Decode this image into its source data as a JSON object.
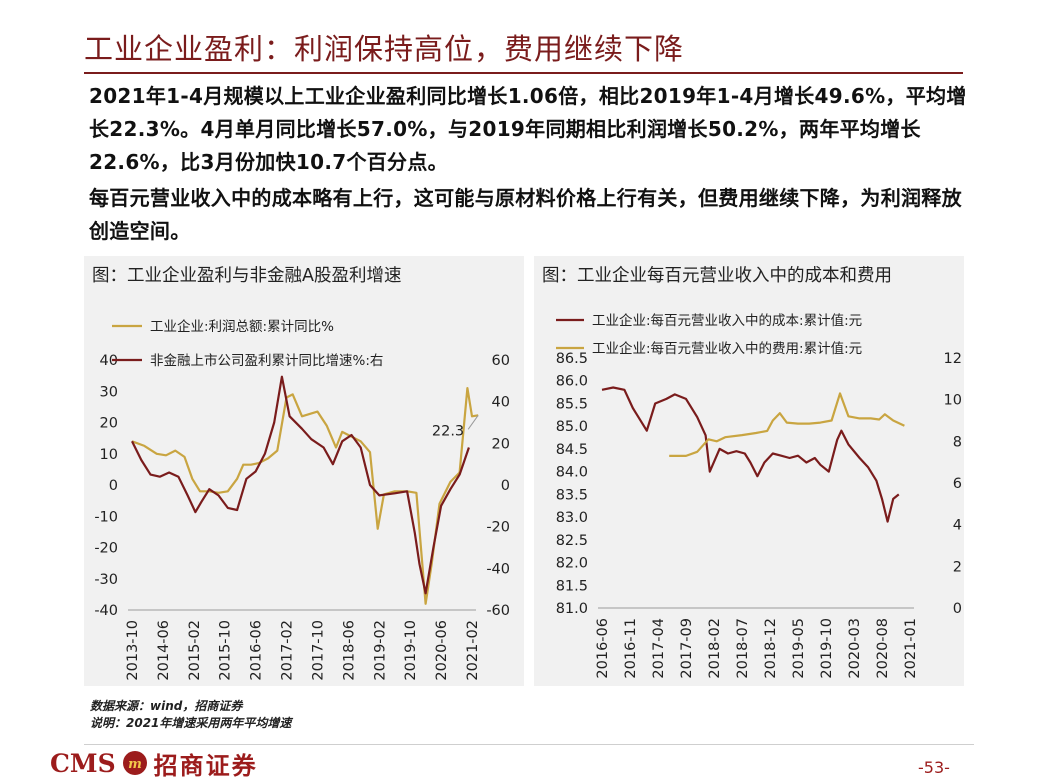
{
  "header": {
    "title": "工业企业盈利：利润保持高位，费用继续下降"
  },
  "body": {
    "paragraph_1": "2021年1-4月规模以上工业企业盈利同比增长1.06倍，相比2019年1-4月增长49.6%，平均增长22.3%。4月单月同比增长57.0%，与2019年同期相比利润增长50.2%，两年平均增长22.6%，比3月份加快10.7个百分点。",
    "paragraph_2": "每百元营业收入中的成本略有上行，这可能与原材料价格上行有关，但费用继续下降，为利润释放创造空间。"
  },
  "footer": {
    "source": "数据来源：wind，招商证券",
    "note": "说明：2021年增速采用两年平均增速",
    "logo_latin": "CMS",
    "logo_cn": "招商证券",
    "page_number": "-53-"
  },
  "colors": {
    "dark_red": "#7a1c1c",
    "gold": "#c9a541",
    "brand_red": "#9c1c1c",
    "panel_bg": "#f1f1f1"
  },
  "chart_data": [
    {
      "type": "line",
      "title": "图：工业企业盈利与非金融A股盈利增速",
      "x_ticks": [
        "2013-10",
        "2014-06",
        "2015-02",
        "2015-10",
        "2016-06",
        "2017-02",
        "2017-10",
        "2018-06",
        "2019-02",
        "2019-10",
        "2020-06",
        "2021-02"
      ],
      "left_axis": {
        "ylim": [
          -40,
          40
        ],
        "ticks": [
          "40",
          "30",
          "20",
          "10",
          "0",
          "-10",
          "-20",
          "-30",
          "-40"
        ]
      },
      "right_axis": {
        "ylim": [
          -60,
          60
        ],
        "ticks": [
          "60",
          "40",
          "20",
          "0",
          "-20",
          "-40",
          "-60"
        ]
      },
      "annotation": "22.3",
      "legend_position": "top-left",
      "series": [
        {
          "name": "工业企业:利润总额:累计同比%",
          "axis": "left",
          "color": "#c9a541",
          "points": [
            [
              0,
              14
            ],
            [
              0.4,
              12.5
            ],
            [
              0.8,
              10
            ],
            [
              1.1,
              9.5
            ],
            [
              1.4,
              11
            ],
            [
              1.7,
              9
            ],
            [
              1.95,
              2
            ],
            [
              2.2,
              -2
            ],
            [
              2.5,
              -2
            ],
            [
              2.8,
              -2.5
            ],
            [
              3.1,
              -2
            ],
            [
              3.4,
              2
            ],
            [
              3.6,
              6.5
            ],
            [
              3.85,
              6.5
            ],
            [
              4.1,
              7
            ],
            [
              4.4,
              8.5
            ],
            [
              4.7,
              11
            ],
            [
              5.0,
              28
            ],
            [
              5.2,
              29
            ],
            [
              5.5,
              22
            ],
            [
              6.0,
              23.5
            ],
            [
              6.3,
              19
            ],
            [
              6.6,
              12
            ],
            [
              6.8,
              17
            ],
            [
              7.1,
              15.5
            ],
            [
              7.4,
              14
            ],
            [
              7.7,
              10.5
            ],
            [
              7.95,
              -14
            ],
            [
              8.15,
              -3
            ],
            [
              8.5,
              -2
            ],
            [
              8.9,
              -2
            ],
            [
              9.2,
              -2.5
            ],
            [
              9.5,
              -38
            ],
            [
              9.7,
              -25
            ],
            [
              9.95,
              -6
            ],
            [
              10.3,
              1
            ],
            [
              10.6,
              4
            ],
            [
              10.85,
              31
            ],
            [
              11.0,
              22
            ],
            [
              11.2,
              22.3
            ]
          ]
        },
        {
          "name": "非金融上市公司盈利累计同比增速%:右",
          "axis": "right",
          "color": "#7a1c1c",
          "points": [
            [
              0,
              21
            ],
            [
              0.3,
              12
            ],
            [
              0.6,
              5
            ],
            [
              0.9,
              4
            ],
            [
              1.2,
              6
            ],
            [
              1.5,
              4
            ],
            [
              1.8,
              -5
            ],
            [
              2.05,
              -13
            ],
            [
              2.25,
              -8
            ],
            [
              2.5,
              -2
            ],
            [
              2.8,
              -5
            ],
            [
              3.1,
              -11
            ],
            [
              3.4,
              -12
            ],
            [
              3.7,
              3
            ],
            [
              4.0,
              6.5
            ],
            [
              4.3,
              15
            ],
            [
              4.6,
              30
            ],
            [
              4.85,
              52
            ],
            [
              5.1,
              33
            ],
            [
              5.5,
              27
            ],
            [
              5.8,
              22
            ],
            [
              6.2,
              18
            ],
            [
              6.5,
              10
            ],
            [
              6.8,
              21
            ],
            [
              7.1,
              24
            ],
            [
              7.4,
              18
            ],
            [
              7.7,
              0
            ],
            [
              8.0,
              -5
            ],
            [
              8.5,
              -4
            ],
            [
              8.9,
              -3
            ],
            [
              9.15,
              -23
            ],
            [
              9.3,
              -38
            ],
            [
              9.5,
              -52
            ],
            [
              9.75,
              -30
            ],
            [
              10.0,
              -10
            ],
            [
              10.3,
              -2
            ],
            [
              10.6,
              5
            ],
            [
              10.9,
              18
            ]
          ]
        }
      ]
    },
    {
      "type": "line",
      "title": "图：工业企业每百元营业收入中的成本和费用",
      "x_ticks": [
        "2016-06",
        "2016-11",
        "2017-04",
        "2017-09",
        "2018-02",
        "2018-07",
        "2018-12",
        "2019-05",
        "2019-10",
        "2020-03",
        "2020-08",
        "2021-01"
      ],
      "left_axis": {
        "ylim": [
          81.0,
          86.5
        ],
        "ticks": [
          "86.5",
          "86.0",
          "85.5",
          "85.0",
          "84.5",
          "84.0",
          "83.5",
          "83.0",
          "82.5",
          "82.0",
          "81.5",
          "81.0"
        ]
      },
      "right_axis": {
        "ylim": [
          0,
          12
        ],
        "ticks": [
          "12",
          "10",
          "8",
          "6",
          "4",
          "2",
          "0"
        ]
      },
      "legend_position": "top",
      "series": [
        {
          "name": "工业企业:每百元营业收入中的成本:累计值:元",
          "axis": "left",
          "color": "#7a1c1c",
          "points": [
            [
              0,
              85.8
            ],
            [
              0.4,
              85.85
            ],
            [
              0.8,
              85.8
            ],
            [
              1.1,
              85.4
            ],
            [
              1.6,
              84.9
            ],
            [
              1.9,
              85.5
            ],
            [
              2.3,
              85.6
            ],
            [
              2.6,
              85.7
            ],
            [
              3.0,
              85.6
            ],
            [
              3.4,
              85.2
            ],
            [
              3.7,
              84.8
            ],
            [
              3.85,
              84.0
            ],
            [
              4.2,
              84.5
            ],
            [
              4.5,
              84.4
            ],
            [
              4.8,
              84.45
            ],
            [
              5.1,
              84.4
            ],
            [
              5.3,
              84.2
            ],
            [
              5.55,
              83.9
            ],
            [
              5.8,
              84.2
            ],
            [
              6.1,
              84.4
            ],
            [
              6.4,
              84.35
            ],
            [
              6.7,
              84.3
            ],
            [
              7.0,
              84.35
            ],
            [
              7.3,
              84.2
            ],
            [
              7.6,
              84.3
            ],
            [
              7.8,
              84.15
            ],
            [
              8.1,
              84.0
            ],
            [
              8.4,
              84.7
            ],
            [
              8.55,
              84.9
            ],
            [
              8.8,
              84.6
            ],
            [
              9.2,
              84.3
            ],
            [
              9.5,
              84.1
            ],
            [
              9.8,
              83.8
            ],
            [
              10.0,
              83.4
            ],
            [
              10.2,
              82.9
            ],
            [
              10.4,
              83.4
            ],
            [
              10.6,
              83.5
            ]
          ]
        },
        {
          "name": "工业企业:每百元营业收入中的费用:累计值:元",
          "axis": "right",
          "color": "#c9a541",
          "points": [
            [
              2.4,
              7.3
            ],
            [
              3.0,
              7.3
            ],
            [
              3.4,
              7.5
            ],
            [
              3.8,
              8.1
            ],
            [
              4.1,
              8.0
            ],
            [
              4.4,
              8.2
            ],
            [
              5.0,
              8.3
            ],
            [
              5.5,
              8.4
            ],
            [
              5.9,
              8.5
            ],
            [
              6.1,
              9.0
            ],
            [
              6.35,
              9.35
            ],
            [
              6.6,
              8.9
            ],
            [
              7.0,
              8.85
            ],
            [
              7.4,
              8.85
            ],
            [
              7.8,
              8.9
            ],
            [
              8.2,
              9.0
            ],
            [
              8.5,
              10.3
            ],
            [
              8.8,
              9.2
            ],
            [
              9.2,
              9.1
            ],
            [
              9.6,
              9.1
            ],
            [
              9.9,
              9.05
            ],
            [
              10.1,
              9.3
            ],
            [
              10.4,
              9.0
            ],
            [
              10.8,
              8.75
            ]
          ]
        }
      ]
    }
  ]
}
